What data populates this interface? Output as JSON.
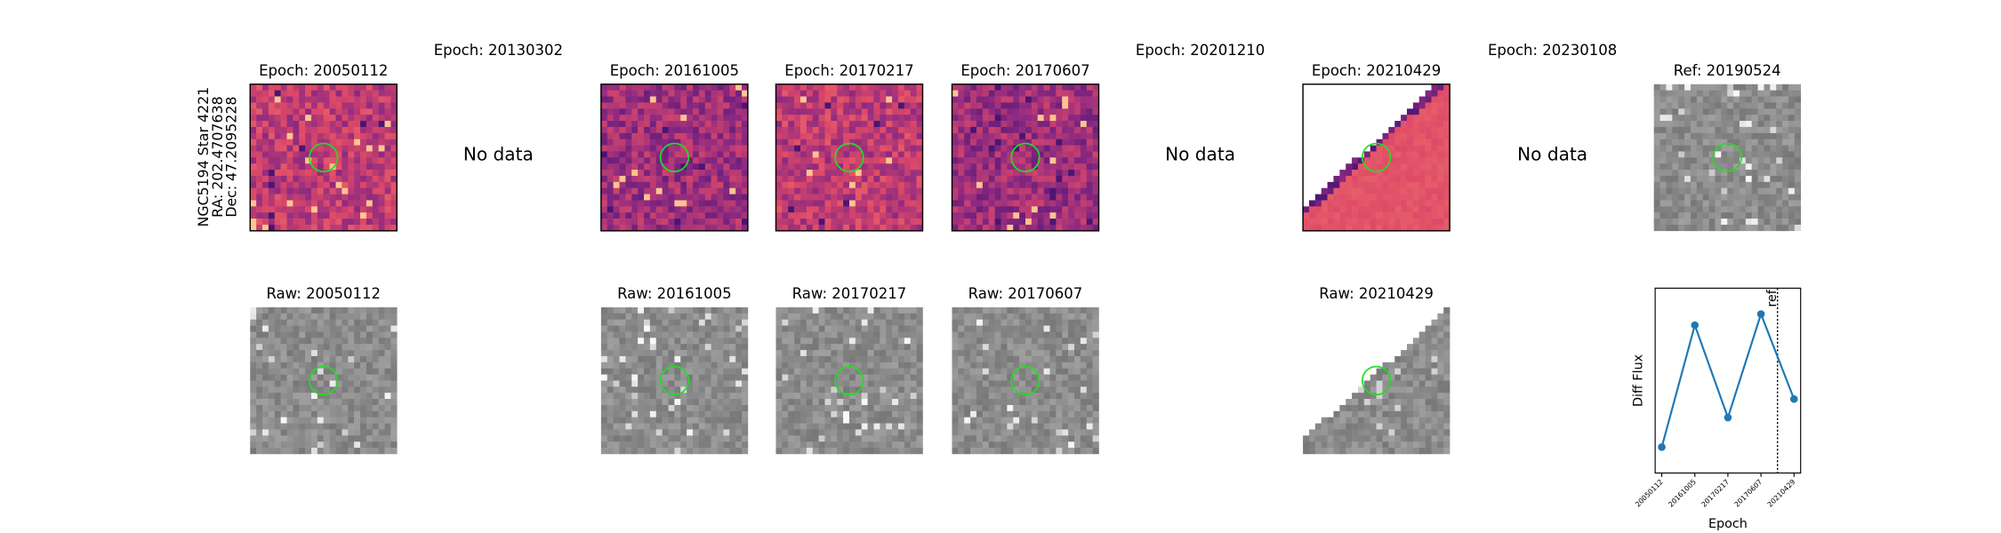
{
  "sidebar": [
    "NGC5194 Star 4221",
    "RA: 202.4707638",
    "Dec: 47.2095228"
  ],
  "panels": [
    {
      "title": "Epoch: 20050112",
      "raw": "Raw: 20050112"
    },
    {
      "title": "Epoch: 20130302",
      "message": "No data"
    },
    {
      "title": "Epoch: 20161005",
      "raw": "Raw: 20161005"
    },
    {
      "title": "Epoch: 20170217",
      "raw": "Raw: 20170217"
    },
    {
      "title": "Epoch: 20170607",
      "raw": "Raw: 20170607"
    },
    {
      "title": "Epoch: 20201210",
      "message": "No data"
    },
    {
      "title": "Epoch: 20210429",
      "raw": "Raw: 20210429"
    },
    {
      "title": "Epoch: 20230108",
      "message": "No data"
    },
    {
      "title": "Ref: 20190524"
    }
  ],
  "chart_data": {
    "type": "line",
    "categories": [
      "20050112",
      "20161005",
      "20170217",
      "20170607",
      "20210429"
    ],
    "values": [
      0.14,
      0.8,
      0.3,
      0.86,
      0.4
    ],
    "color": "#1f77b4",
    "ylim": [
      0,
      1
    ],
    "xlabel": "Epoch",
    "ylabel": "Diff Flux",
    "ref_label": "ref"
  }
}
